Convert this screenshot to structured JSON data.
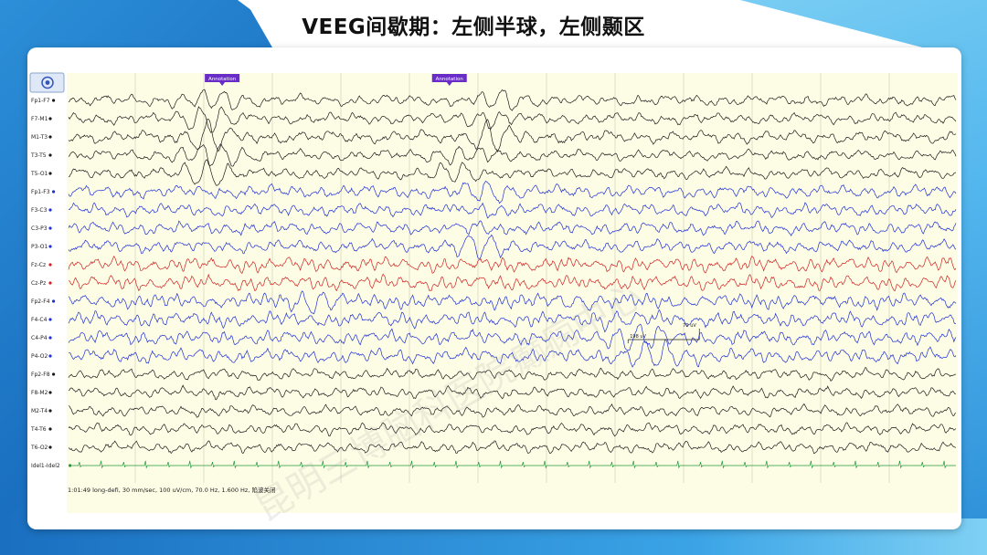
{
  "page": {
    "title": "VEEG间歇期：左侧半球，左侧颞区"
  },
  "viewer": {
    "toolbar_icon": "target-icon",
    "status_text": "1:01:49 long-defi, 30 mm/sec, 100 uV/cm, 70.0 Hz, 1.600 Hz, 陷波关闭",
    "watermark_text": "昆明三博脑科医院癫痫中心",
    "colors": {
      "background": "#fdfde6",
      "gridline": "#d8d8c0",
      "black_channel": "#1a1a1a",
      "blue_channel": "#1f2fd6",
      "red_channel": "#d02020",
      "ecg_channel": "#1f9a3a",
      "annotation": "#6a2cc9"
    }
  },
  "chart_data": {
    "type": "line",
    "subtype": "eeg-montage",
    "annotations": [
      {
        "label": "Annotation",
        "time_frac": 0.155
      },
      {
        "label": "Annotation",
        "time_frac": 0.41
      }
    ],
    "measurement": {
      "label_start": "198 uV",
      "label_end": "70 uV",
      "time_frac_start": 0.63,
      "time_frac_end": 0.71
    },
    "channels": [
      {
        "name": "Fp1-F7",
        "color": "black",
        "amp": 6,
        "freq": 1.1,
        "bursts": [
          [
            0.16,
            12
          ],
          [
            0.48,
            10
          ]
        ]
      },
      {
        "name": "F7-M1",
        "color": "black",
        "amp": 6,
        "freq": 1.2,
        "bursts": [
          [
            0.16,
            12
          ],
          [
            0.48,
            10
          ]
        ]
      },
      {
        "name": "M1-T3",
        "color": "black",
        "amp": 7,
        "freq": 1.0,
        "bursts": [
          [
            0.16,
            14
          ],
          [
            0.48,
            14
          ]
        ]
      },
      {
        "name": "T3-T5",
        "color": "black",
        "amp": 6,
        "freq": 1.1,
        "bursts": [
          [
            0.16,
            14
          ],
          [
            0.45,
            10
          ]
        ]
      },
      {
        "name": "T5-O1",
        "color": "black",
        "amp": 6,
        "freq": 1.2,
        "bursts": [
          [
            0.16,
            12
          ],
          [
            0.44,
            8
          ]
        ]
      },
      {
        "name": "Fp1-F3",
        "color": "blue",
        "amp": 7,
        "freq": 1.3,
        "bursts": [
          [
            0.47,
            8
          ]
        ]
      },
      {
        "name": "F3-C3",
        "color": "blue",
        "amp": 7,
        "freq": 1.4,
        "bursts": [
          [
            0.47,
            8
          ]
        ]
      },
      {
        "name": "C3-P3",
        "color": "blue",
        "amp": 7,
        "freq": 1.4,
        "bursts": [
          [
            0.46,
            8
          ]
        ]
      },
      {
        "name": "P3-O1",
        "color": "blue",
        "amp": 7,
        "freq": 1.3,
        "bursts": [
          [
            0.46,
            10
          ]
        ]
      },
      {
        "name": "Fz-Cz",
        "color": "red",
        "amp": 8,
        "freq": 1.6,
        "bursts": [
          [
            0.55,
            6
          ]
        ]
      },
      {
        "name": "Cz-Pz",
        "color": "red",
        "amp": 8,
        "freq": 1.6,
        "bursts": [
          [
            0.55,
            6
          ]
        ]
      },
      {
        "name": "Fp2-F4",
        "color": "blue",
        "amp": 8,
        "freq": 1.7,
        "bursts": [
          [
            0.28,
            8
          ],
          [
            0.6,
            8
          ]
        ]
      },
      {
        "name": "F4-C4",
        "color": "blue",
        "amp": 8,
        "freq": 1.6,
        "bursts": [
          [
            0.35,
            8
          ],
          [
            0.6,
            8
          ]
        ]
      },
      {
        "name": "C4-P4",
        "color": "blue",
        "amp": 8,
        "freq": 1.5,
        "bursts": [
          [
            0.64,
            10
          ]
        ]
      },
      {
        "name": "P4-O2",
        "color": "blue",
        "amp": 8,
        "freq": 1.4,
        "bursts": [
          [
            0.66,
            12
          ]
        ]
      },
      {
        "name": "Fp2-F8",
        "color": "black",
        "amp": 6,
        "freq": 1.3,
        "bursts": []
      },
      {
        "name": "F8-M2",
        "color": "black",
        "amp": 6,
        "freq": 1.4,
        "bursts": []
      },
      {
        "name": "M2-T4",
        "color": "black",
        "amp": 6,
        "freq": 1.3,
        "bursts": []
      },
      {
        "name": "T4-T6",
        "color": "black",
        "amp": 6,
        "freq": 1.4,
        "bursts": []
      },
      {
        "name": "T6-O2",
        "color": "black",
        "amp": 6,
        "freq": 1.3,
        "bursts": [
          [
            0.6,
            6
          ]
        ]
      },
      {
        "name": "Idel1-Idel2",
        "color": "ecg",
        "amp": 1,
        "freq": 0.2,
        "bursts": []
      }
    ],
    "grid": true
  }
}
